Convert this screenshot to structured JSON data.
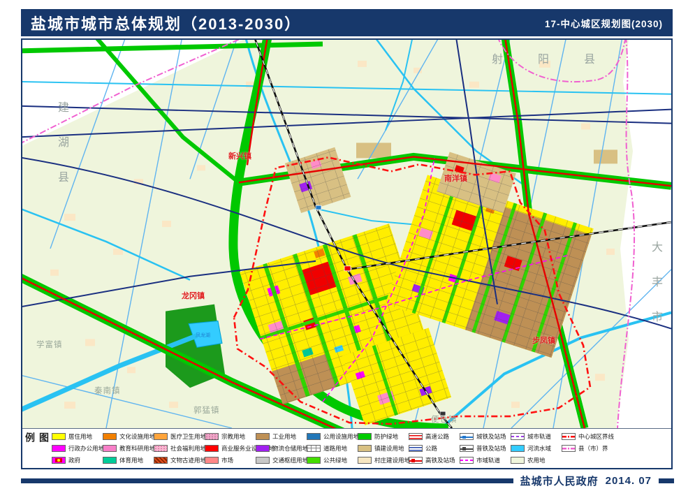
{
  "header": {
    "title": "盐城市城市总体规划（2013-2030）",
    "subtitle": "17-中心城区规划图(2030)"
  },
  "footer": {
    "publisher": "盐城市人民政府",
    "date": "2014. 07"
  },
  "map": {
    "labels": {
      "jianhu": "建湖县",
      "sheyang": "射阳县",
      "dafeng": "大丰市",
      "xinxing": "新兴镇",
      "nanyang": "南洋镇",
      "longgang": "龙冈镇",
      "bufeng": "步凤镇",
      "xuefu": "学富镇",
      "qinnan": "秦南镇",
      "guomeng": "郭猛镇",
      "biancang": "便仓镇",
      "lake": "凤龙湖"
    },
    "colors": {
      "agriculture": "#EFF5DC",
      "outside": "#FFFFFF",
      "water": "#33CCFF",
      "green_buffer": "#00C800",
      "park": "#3ADF00",
      "residential": "#FFEE00",
      "industry": "#BE9055",
      "commerce": "#FF0000",
      "admin": "#FF00FF",
      "logistics": "#A020F0",
      "town_build": "#D8C083",
      "village": "#FBE7C5",
      "highway": "#E60000",
      "road": "#1A2F80",
      "rail": "#111111",
      "city_boundary": "#FF1010",
      "county_boundary": "#F060D0",
      "navy": "#17386B"
    }
  },
  "legend": {
    "title": "图例",
    "columns": [
      [
        {
          "label": "居住用地",
          "swatch": {
            "type": "fill",
            "c1": "#FFFF00"
          }
        },
        {
          "label": "行政办公用地",
          "swatch": {
            "type": "fill",
            "c1": "#FF00FF"
          }
        },
        {
          "label": "政府",
          "swatch": {
            "type": "gov",
            "c1": "#FF00FF"
          }
        }
      ],
      [
        {
          "label": "文化设施用地",
          "swatch": {
            "type": "fill",
            "c1": "#F28000"
          }
        },
        {
          "label": "教育科研用地",
          "swatch": {
            "type": "fill",
            "c1": "#F77FC8"
          }
        },
        {
          "label": "体育用地",
          "swatch": {
            "type": "fill",
            "c1": "#00CC99"
          }
        }
      ],
      [
        {
          "label": "医疗卫生用地",
          "swatch": {
            "type": "fill",
            "c1": "#FFA43B"
          }
        },
        {
          "label": "社会福利用地",
          "swatch": {
            "type": "dots",
            "c1": "#F8B8D0",
            "c2": "#D05898"
          }
        },
        {
          "label": "文物古迹用地",
          "swatch": {
            "type": "hatch",
            "c1": "#E05020",
            "c2": "#8B2500"
          }
        }
      ],
      [
        {
          "label": "宗教用地",
          "swatch": {
            "type": "dots",
            "c1": "#F0A8C8",
            "c2": "#B05888"
          }
        },
        {
          "label": "商业服务业设施用地",
          "swatch": {
            "type": "fill",
            "c1": "#FF0000"
          }
        },
        {
          "label": "市场",
          "swatch": {
            "type": "fill",
            "c1": "#FF8888"
          }
        }
      ],
      [
        {
          "label": "工业用地",
          "swatch": {
            "type": "fill",
            "c1": "#BE9055"
          }
        },
        {
          "label": "物流仓储用地",
          "swatch": {
            "type": "fill",
            "c1": "#A020F0"
          }
        },
        {
          "label": "交通枢纽用地",
          "swatch": {
            "type": "fill",
            "c1": "#C8C8C8"
          }
        }
      ],
      [
        {
          "label": "公用设施用地",
          "swatch": {
            "type": "fill",
            "c1": "#2277B8"
          }
        },
        {
          "label": "道路用地",
          "swatch": {
            "type": "roadgrid",
            "c1": "#888888"
          }
        },
        {
          "label": "公共绿地",
          "swatch": {
            "type": "fill",
            "c1": "#44DD00"
          }
        }
      ],
      [
        {
          "label": "防护绿地",
          "swatch": {
            "type": "fill",
            "c1": "#00CC00"
          }
        },
        {
          "label": "镇建设用地",
          "swatch": {
            "type": "fill",
            "c1": "#D8C083"
          }
        },
        {
          "label": "村庄建设用地",
          "swatch": {
            "type": "fill",
            "c1": "#F6E6C2"
          }
        }
      ],
      [
        {
          "label": "高速公路",
          "swatch": {
            "type": "dbl",
            "c1": "#E60000"
          }
        },
        {
          "label": "公路",
          "swatch": {
            "type": "dbl",
            "c1": "#2244AA"
          }
        },
        {
          "label": "高铁及站场",
          "swatch": {
            "type": "rail",
            "c1": "#E60000"
          }
        }
      ],
      [
        {
          "label": "城铁及站场",
          "swatch": {
            "type": "rail",
            "c1": "#2277CC"
          }
        },
        {
          "label": "普铁及站场",
          "swatch": {
            "type": "rail",
            "c1": "#444444"
          }
        },
        {
          "label": "市域轨道",
          "swatch": {
            "type": "dash",
            "c1": "#FF00FF"
          }
        }
      ],
      [
        {
          "label": "城市轨道",
          "swatch": {
            "type": "dash",
            "c1": "#A040E8"
          }
        },
        {
          "label": "河流水域",
          "swatch": {
            "type": "fill",
            "c1": "#33CCFF"
          }
        },
        {
          "label": "农用地",
          "swatch": {
            "type": "fill",
            "c1": "#EFF5DC"
          }
        }
      ],
      [
        {
          "label": "中心城区界线",
          "swatch": {
            "type": "dashdot",
            "c1": "#FF0000"
          }
        },
        {
          "label": "县（市）界",
          "swatch": {
            "type": "dashdot",
            "c1": "#F060D0"
          }
        },
        {
          "label": "",
          "swatch": {
            "type": "empty"
          }
        }
      ]
    ]
  }
}
